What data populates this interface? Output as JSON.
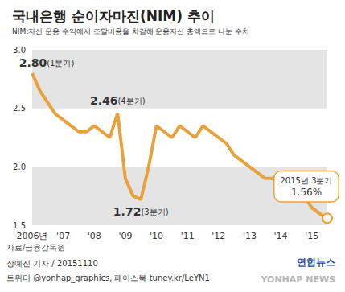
{
  "chart_data": {
    "type": "line",
    "title": "국내은행 순이자마진(NIM) 추이",
    "subtitle": "NIM:자산 운용 수익에서 조달비용을 차감해 운용자산 총액으로 나눈 수치",
    "categories": [
      "2006년",
      null,
      null,
      null,
      "'07",
      null,
      null,
      null,
      "'08",
      null,
      null,
      null,
      "'09",
      null,
      null,
      null,
      "'10",
      null,
      null,
      null,
      "'11",
      null,
      null,
      null,
      "'12",
      null,
      null,
      null,
      "'13",
      null,
      null,
      null,
      "'14",
      null,
      null,
      null,
      "'15",
      null,
      null
    ],
    "values": [
      2.8,
      2.65,
      2.55,
      2.45,
      2.4,
      2.35,
      2.3,
      2.3,
      2.35,
      2.3,
      2.25,
      2.46,
      1.9,
      1.75,
      1.72,
      2.0,
      2.35,
      2.3,
      2.25,
      2.35,
      2.3,
      2.25,
      2.35,
      2.3,
      2.25,
      2.2,
      2.1,
      2.05,
      2.0,
      1.95,
      1.9,
      1.9,
      1.85,
      1.8,
      1.8,
      1.75,
      1.65,
      1.6,
      1.56
    ],
    "color": "#e9a23b",
    "ylim": [
      1.5,
      3.0
    ],
    "yticks": [
      1.5,
      {
        "value": 2,
        "label": "2.0"
      },
      2.5,
      {
        "value": 3,
        "label": "3.0"
      }
    ],
    "grid": true,
    "annotations": [
      {
        "value": 2.8,
        "label": "2.80",
        "note": "(1분기)"
      },
      {
        "value": 2.46,
        "label": "2.46",
        "note": "(4분기)"
      },
      {
        "value": 1.72,
        "label": "1.72",
        "note": "(3분기)"
      }
    ],
    "latest": {
      "value": 1.56,
      "label": "1.56%",
      "note": "2015년 3분기"
    },
    "source": "자료/금융감독원",
    "credits": [
      "장예진 기자 / 20151110",
      "트위터 @yonhap_graphics, 페이스북 tuney.kr/LeYN1"
    ],
    "logo": "연합뉴스",
    "watermark": "YONHAP NEWS"
  }
}
